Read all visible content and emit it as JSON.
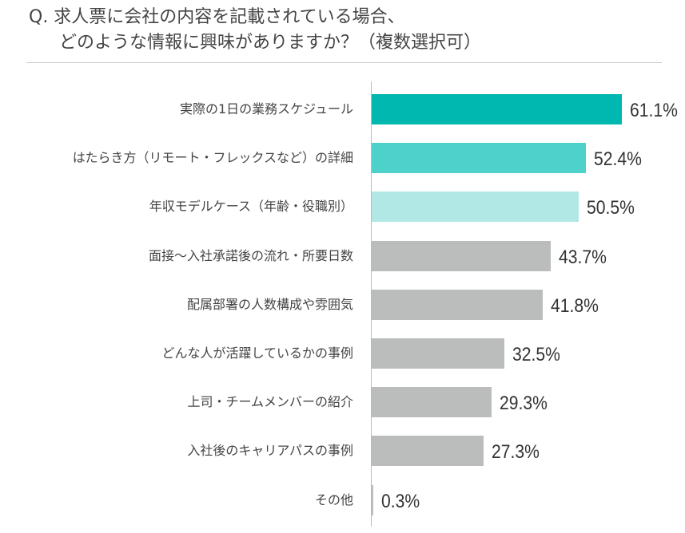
{
  "chart_data": {
    "type": "bar",
    "orientation": "horizontal",
    "title_line1": "Q. 求人票に会社の内容を記載されている場合、",
    "title_line2": "どのような情報に興味がありますか？（複数選択可）",
    "categories": [
      "実際の1日の業務スケジュール",
      "はたらき方（リモート・フレックスなど）の詳細",
      "年収モデルケース（年齢・役職別）",
      "面接～入社承諾後の流れ・所要日数",
      "配属部署の人数構成や雰囲気",
      "どんな人が活躍しているかの事例",
      "上司・チームメンバーの紹介",
      "入社後のキャリアパスの事例",
      "その他"
    ],
    "values": [
      61.1,
      52.4,
      50.5,
      43.7,
      41.8,
      32.5,
      29.3,
      27.3,
      0.3
    ],
    "value_labels": [
      "61.1%",
      "52.4%",
      "50.5%",
      "43.7%",
      "41.8%",
      "32.5%",
      "29.3%",
      "27.3%",
      "0.3%"
    ],
    "colors": [
      "#00b8b0",
      "#4ed1cb",
      "#b1e8e5",
      "#bbbcbc",
      "#bbbcbc",
      "#bbbcbc",
      "#bbbcbc",
      "#bbbcbc",
      "#bbbcbc"
    ],
    "unit": "%",
    "grid": false,
    "legend": "none"
  }
}
